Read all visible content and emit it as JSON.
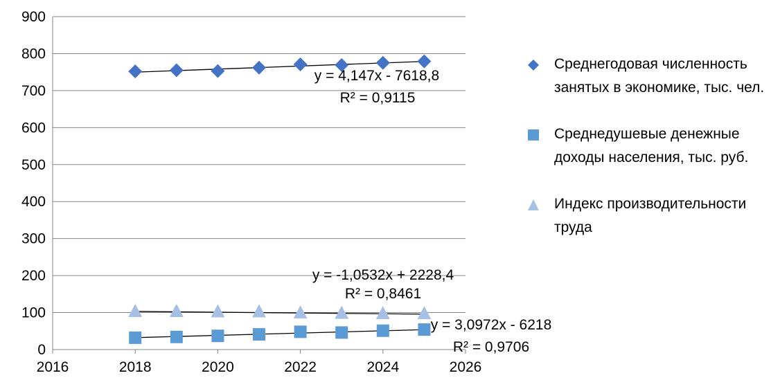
{
  "chart_data": {
    "type": "scatter",
    "xlim": [
      2016,
      2026
    ],
    "ylim": [
      0,
      900
    ],
    "x_ticks": [
      2016,
      2018,
      2020,
      2022,
      2024,
      2026
    ],
    "y_ticks": [
      0,
      100,
      200,
      300,
      400,
      500,
      600,
      700,
      800,
      900
    ],
    "grid": "horizontal",
    "legend_position": "right",
    "x": [
      2018,
      2019,
      2020,
      2021,
      2022,
      2023,
      2024,
      2025
    ],
    "series": [
      {
        "name": "Среднегодовая численность занятых в экономике, тыс. чел.",
        "marker": "diamond",
        "color": "#4472C4",
        "values": [
          752,
          755,
          753,
          762,
          771,
          769,
          775,
          779
        ],
        "trendline": {
          "slope": 4.147,
          "intercept": -7618.8,
          "equation": "y = 4,147x - 7618,8",
          "r2": "R² = 0,9115"
        }
      },
      {
        "name": "Среднедушевые денежные доходы населения, тыс. руб.",
        "marker": "square",
        "color": "#5B9BD5",
        "values": [
          32,
          34,
          37,
          41,
          48,
          46,
          51,
          54
        ],
        "trendline": {
          "slope": 3.0972,
          "intercept": -6218,
          "equation": "y = 3,0972x - 6218",
          "r2": "R² = 0,9706"
        }
      },
      {
        "name": "Индекс производительности труда",
        "marker": "triangle",
        "color": "#A5C0E4",
        "values": [
          103,
          103,
          102,
          102,
          99,
          98,
          97,
          97
        ],
        "trendline": {
          "slope": -1.0532,
          "intercept": 2228.4,
          "equation": "y = -1,0532x + 2228,4",
          "r2": "R² = 0,8461"
        }
      }
    ]
  }
}
